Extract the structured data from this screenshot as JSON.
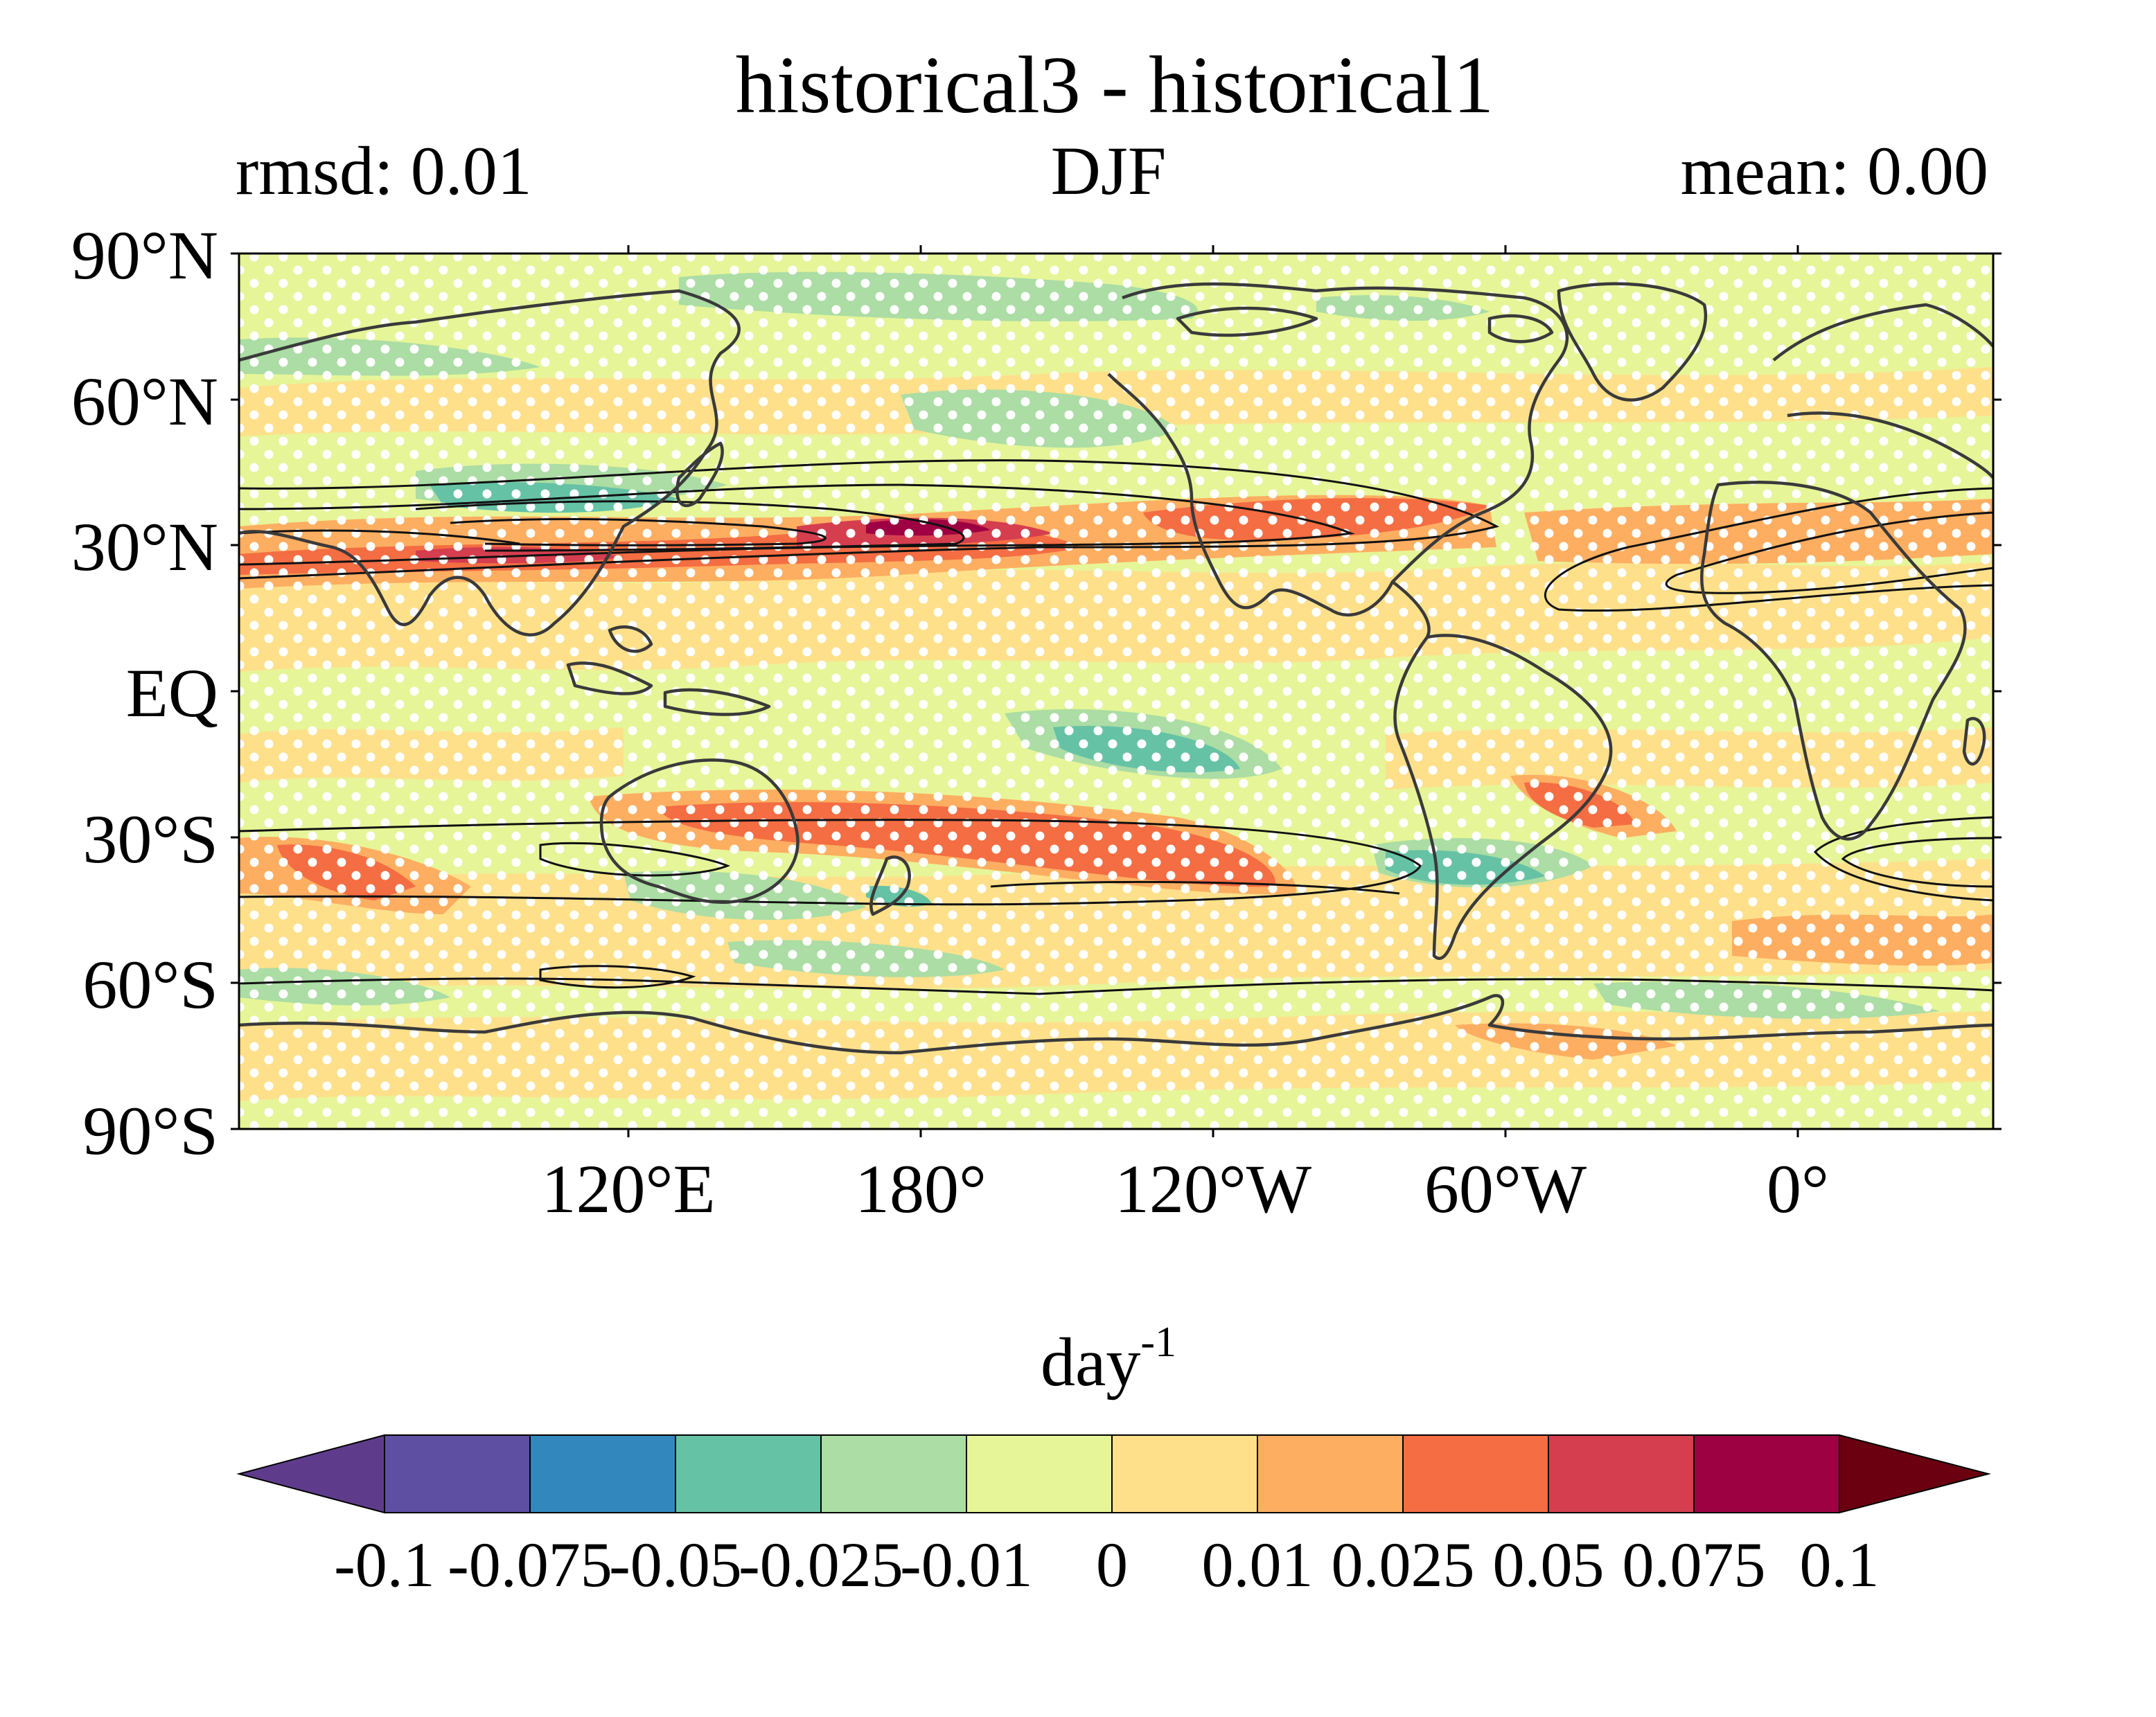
{
  "title": "historical3 - historical1",
  "subtitle_left": "rmsd: 0.01",
  "subtitle_center": "DJF",
  "subtitle_right": "mean: 0.00",
  "map": {
    "projection": "PlateCarree (centered ~160°E)",
    "stippling": true,
    "contours": true,
    "lat_ticks": [
      "90°N",
      "60°N",
      "30°N",
      "EQ",
      "30°S",
      "60°S",
      "90°S"
    ],
    "lon_ticks": [
      "120°E",
      "180°",
      "120°W",
      "60°W",
      "0°"
    ]
  },
  "colorbar": {
    "label_base": "day",
    "label_sup": "-1",
    "boundaries": [
      "-0.1",
      "-0.075",
      "-0.05",
      "-0.025",
      "-0.01",
      "0",
      "0.01",
      "0.025",
      "0.05",
      "0.075",
      "0.1"
    ],
    "colors": [
      "#5e4fa2",
      "#3288bd",
      "#66c2a5",
      "#abdda4",
      "#e6f598",
      "#fee08b",
      "#fdae61",
      "#f46d43",
      "#d53e4f",
      "#9e0142"
    ],
    "extend_low_color": "#5e3c8b",
    "extend_high_color": "#6a0010"
  },
  "colors": {
    "background_field": "#e6f598",
    "coastline": "#3a3a3a",
    "stipple": "#ffffff"
  }
}
